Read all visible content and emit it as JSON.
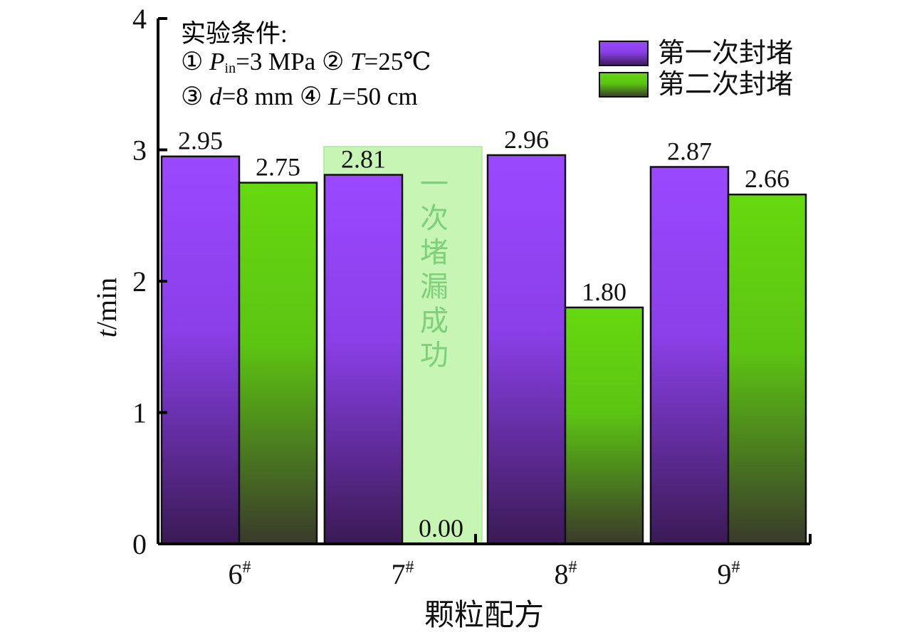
{
  "chart_data": {
    "type": "bar",
    "categories": [
      "6#",
      "7#",
      "8#",
      "9#"
    ],
    "category_labels": [
      {
        "base": "6",
        "sup": "#"
      },
      {
        "base": "7",
        "sup": "#"
      },
      {
        "base": "8",
        "sup": "#"
      },
      {
        "base": "9",
        "sup": "#"
      }
    ],
    "series": [
      {
        "name": "第一次封堵",
        "values": [
          2.95,
          2.81,
          2.96,
          2.87
        ],
        "labels": [
          "2.95",
          "2.81",
          "2.96",
          "2.87"
        ]
      },
      {
        "name": "第二次封堵",
        "values": [
          2.75,
          0.0,
          1.8,
          2.66
        ],
        "labels": [
          "2.75",
          "0.00",
          "1.80",
          "2.66"
        ]
      }
    ],
    "xlabel": "颗粒配方",
    "ylabel": {
      "var": "t",
      "unit": "/min"
    },
    "ylim": [
      0,
      4
    ],
    "yticks": [
      0,
      1,
      2,
      3,
      4
    ],
    "ytick_labels": [
      "0",
      "1",
      "2",
      "3",
      "4"
    ],
    "grid": false,
    "legend_position": "top-right",
    "colors": {
      "series1_top": "#9b48ff",
      "series1_bottom": "#3a1a55",
      "series2_top": "#66d90f",
      "series2_bottom": "#3a3a2a",
      "highlight_fill": "#c6f5b4",
      "highlight_text": "#7fd07a"
    },
    "annotation": {
      "title": "实验条件:",
      "line1": {
        "m1": "①",
        "v1": "P",
        "s1": "in",
        "r1": "=3 MPa",
        "m2": "②",
        "v2": "T",
        "r2": "=25℃"
      },
      "line2": {
        "m1": "③",
        "v1": "d",
        "r1": "=8 mm",
        "m2": "④",
        "v2": "L",
        "r2": "=50 cm"
      }
    },
    "highlight": {
      "category": "7#",
      "text": "一次堵漏成功"
    }
  }
}
